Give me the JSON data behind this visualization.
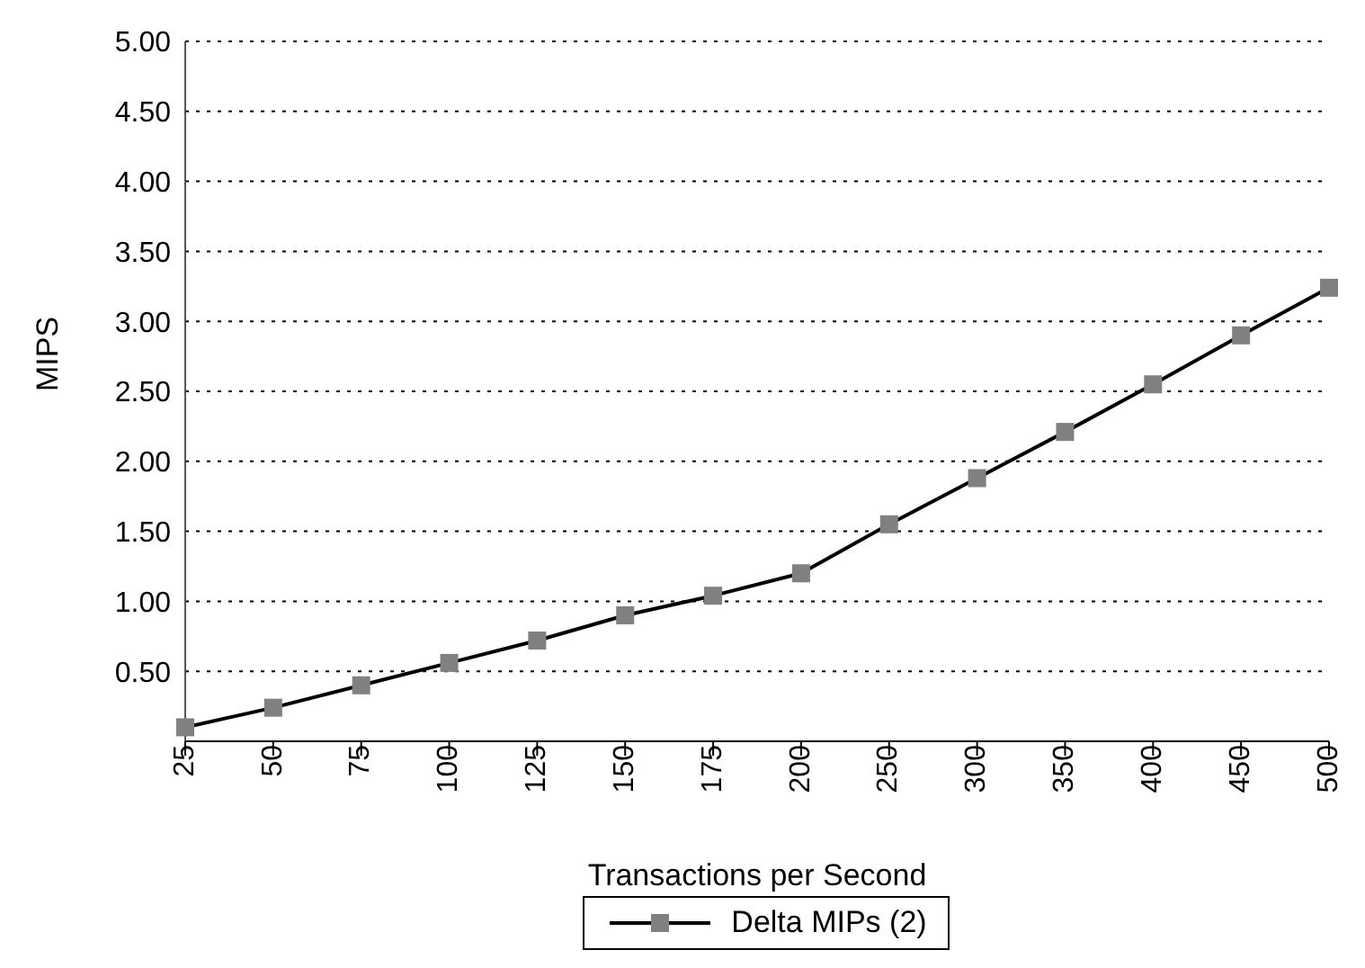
{
  "chart_data": {
    "type": "line",
    "xlabel": "Transactions per Second",
    "ylabel": "MIPS",
    "categories": [
      "25",
      "50",
      "75",
      "100",
      "125",
      "150",
      "175",
      "200",
      "250",
      "300",
      "350",
      "400",
      "450",
      "500"
    ],
    "series": [
      {
        "name": "Delta MIPs (2)",
        "color": "#000000",
        "values": [
          0.1,
          0.24,
          0.4,
          0.56,
          0.72,
          0.9,
          1.04,
          1.2,
          1.55,
          1.88,
          2.21,
          2.55,
          2.9,
          3.24
        ]
      }
    ],
    "ylim": [
      0,
      5
    ],
    "yticks": [
      {
        "value": 0,
        "label": null
      },
      {
        "value": 0.5,
        "label": "0.50"
      },
      {
        "value": 1,
        "label": "1.00"
      },
      {
        "value": 1.5,
        "label": "1.50"
      },
      {
        "value": 2,
        "label": "2.00"
      },
      {
        "value": 2.5,
        "label": "2.50"
      },
      {
        "value": 3,
        "label": "3.00"
      },
      {
        "value": 3.5,
        "label": "3.50"
      },
      {
        "value": 4,
        "label": "4.00"
      },
      {
        "value": 4.5,
        "label": "4.50"
      },
      {
        "value": 5,
        "label": "5.00"
      }
    ],
    "grid": "y",
    "legend": "bottom",
    "marker": "square",
    "line_style": "solid"
  }
}
